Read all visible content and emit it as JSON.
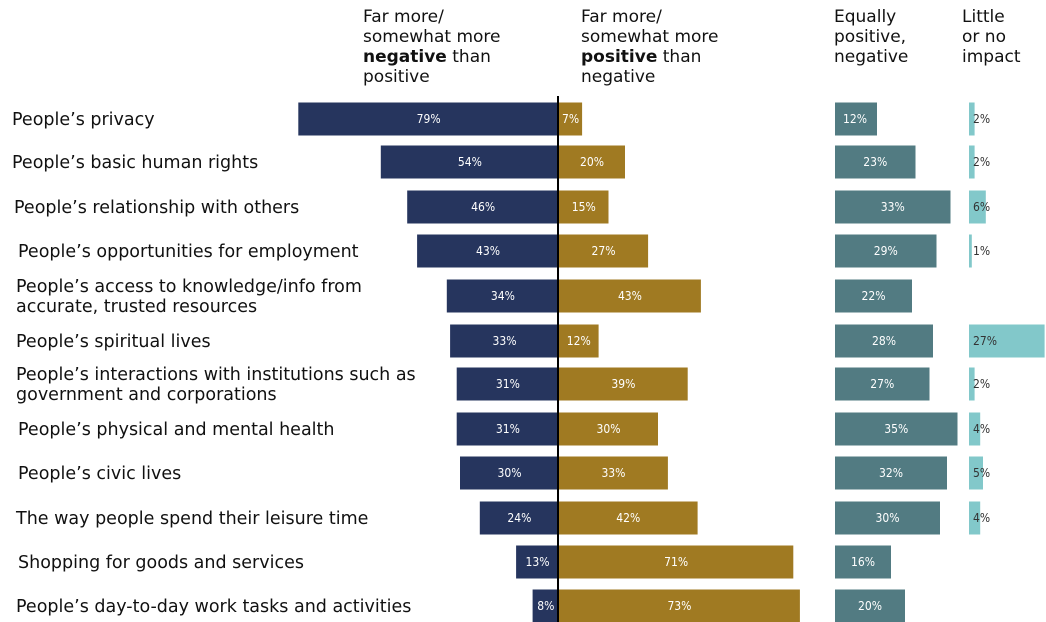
{
  "chart_data": {
    "type": "bar",
    "orientation": "horizontal",
    "layout": "diverging",
    "title": "",
    "categories": [
      [
        "People’s privacy"
      ],
      [
        "People’s basic human rights"
      ],
      [
        "People’s relationship with others"
      ],
      [
        "People’s opportunities for employment"
      ],
      [
        "People’s access to knowledge/info from",
        "accurate, trusted resources"
      ],
      [
        "People’s spiritual lives"
      ],
      [
        "People’s interactions with institutions such as",
        "government and corporations"
      ],
      [
        "People’s physical and mental health"
      ],
      [
        "People’s civic lives"
      ],
      [
        "The way people spend their leisure time"
      ],
      [
        "Shopping for goods and services"
      ],
      [
        "People’s day-to-day work tasks and activities"
      ]
    ],
    "series": [
      {
        "key": "negative",
        "header": [
          [
            "Far more/"
          ],
          [
            "somewhat more"
          ],
          [
            "negative",
            " than"
          ],
          [
            "positive"
          ]
        ],
        "color": "#26355e",
        "label_color": "#ffffff",
        "values": [
          79,
          54,
          46,
          43,
          34,
          33,
          31,
          31,
          30,
          24,
          13,
          8
        ]
      },
      {
        "key": "positive",
        "header": [
          [
            "Far more/"
          ],
          [
            "somewhat more"
          ],
          [
            "positive",
            " than"
          ],
          [
            "negative"
          ]
        ],
        "color": "#a07a22",
        "label_color": "#ffffff",
        "values": [
          7,
          20,
          15,
          27,
          43,
          12,
          39,
          30,
          33,
          42,
          71,
          73
        ]
      },
      {
        "key": "equal",
        "header": [
          [
            "Equally"
          ],
          [
            "positive,"
          ],
          [
            "negative"
          ]
        ],
        "color": "#527b82",
        "label_color": "#ffffff",
        "values": [
          12,
          23,
          33,
          29,
          22,
          28,
          27,
          35,
          32,
          30,
          16,
          20
        ]
      },
      {
        "key": "little",
        "header": [
          [
            "Little"
          ],
          [
            "or no"
          ],
          [
            "impact"
          ]
        ],
        "color": "#82c8ca",
        "label_color": "#333333",
        "values": [
          2,
          2,
          6,
          1,
          null,
          27,
          2,
          4,
          5,
          4,
          null,
          null
        ]
      }
    ],
    "value_suffix": "%",
    "grid": false,
    "legend": "column headers at top"
  }
}
